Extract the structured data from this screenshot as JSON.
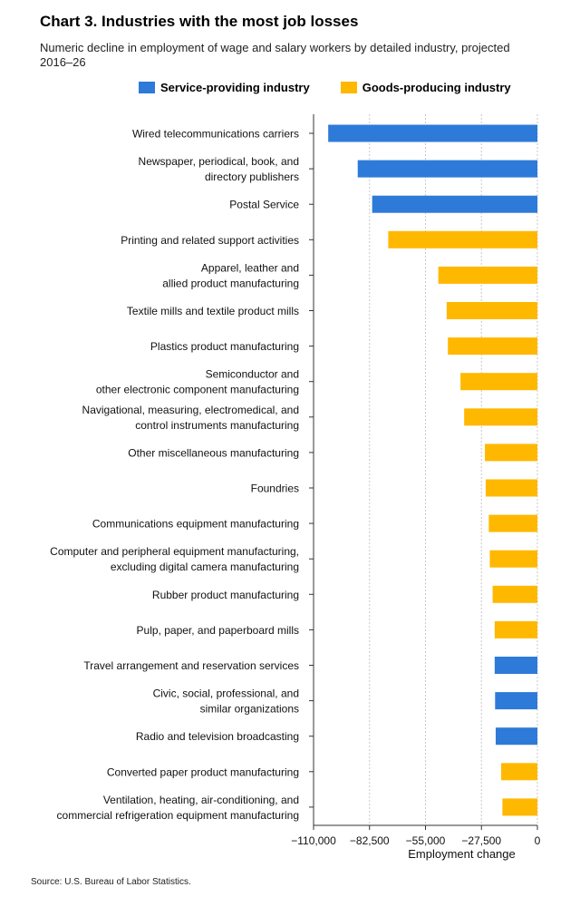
{
  "chart_data": {
    "type": "bar",
    "orientation": "horizontal",
    "title": "Chart 3. Industries with the most job losses",
    "subtitle": "Numeric decline in employment of wage and salary workers by detailed industry, projected 2016–26",
    "xlabel": "Employment change",
    "ylabel": "",
    "xlim": [
      -110000,
      0
    ],
    "xticks": [
      -110000,
      -82500,
      -55000,
      -27500,
      0
    ],
    "xtick_labels": [
      "−110,000",
      "−82,500",
      "−55,000",
      "−27,500",
      "0"
    ],
    "grid": true,
    "legend": [
      {
        "key": "service",
        "label": "Service-providing industry",
        "color": "#2e7ad9"
      },
      {
        "key": "goods",
        "label": "Goods-producing industry",
        "color": "#ffb800"
      }
    ],
    "categories": [
      {
        "label": [
          "Wired telecommunications carriers"
        ],
        "value": -102800,
        "group": "service"
      },
      {
        "label": [
          "Newspaper, periodical, book, and",
          "directory publishers"
        ],
        "value": -88300,
        "group": "service"
      },
      {
        "label": [
          "Postal Service"
        ],
        "value": -81200,
        "group": "service"
      },
      {
        "label": [
          "Printing and related support activities"
        ],
        "value": -73300,
        "group": "goods"
      },
      {
        "label": [
          "Apparel, leather and",
          "allied product manufacturing"
        ],
        "value": -48700,
        "group": "goods"
      },
      {
        "label": [
          "Textile mills and textile product mills"
        ],
        "value": -44600,
        "group": "goods"
      },
      {
        "label": [
          "Plastics product manufacturing"
        ],
        "value": -44000,
        "group": "goods"
      },
      {
        "label": [
          "Semiconductor and",
          "other electronic component manufacturing"
        ],
        "value": -37800,
        "group": "goods"
      },
      {
        "label": [
          "Navigational, measuring, electromedical, and",
          "control instruments manufacturing"
        ],
        "value": -36000,
        "group": "goods"
      },
      {
        "label": [
          "Other miscellaneous manufacturing"
        ],
        "value": -25800,
        "group": "goods"
      },
      {
        "label": [
          "Foundries"
        ],
        "value": -25400,
        "group": "goods"
      },
      {
        "label": [
          "Communications equipment manufacturing"
        ],
        "value": -23900,
        "group": "goods"
      },
      {
        "label": [
          "Computer and peripheral equipment manufacturing,",
          "excluding digital camera manufacturing"
        ],
        "value": -23400,
        "group": "goods"
      },
      {
        "label": [
          "Rubber product manufacturing"
        ],
        "value": -22000,
        "group": "goods"
      },
      {
        "label": [
          "Pulp, paper, and paperboard mills"
        ],
        "value": -21000,
        "group": "goods"
      },
      {
        "label": [
          "Travel arrangement and reservation services"
        ],
        "value": -21000,
        "group": "service"
      },
      {
        "label": [
          "Civic, social, professional, and",
          "similar organizations"
        ],
        "value": -20800,
        "group": "service"
      },
      {
        "label": [
          "Radio and television broadcasting"
        ],
        "value": -20500,
        "group": "service"
      },
      {
        "label": [
          "Converted paper product manufacturing"
        ],
        "value": -17800,
        "group": "goods"
      },
      {
        "label": [
          "Ventilation, heating, air-conditioning, and",
          "commercial refrigeration equipment manufacturing"
        ],
        "value": -17200,
        "group": "goods"
      }
    ]
  },
  "source": "Source: U.S. Bureau of Labor Statistics."
}
